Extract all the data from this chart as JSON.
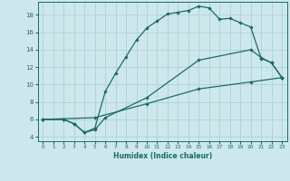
{
  "xlabel": "Humidex (Indice chaleur)",
  "background_color": "#cde8ec",
  "grid_color": "#aed0d5",
  "line_color": "#1a6b6b",
  "xlim": [
    -0.5,
    23.5
  ],
  "ylim": [
    3.5,
    19.5
  ],
  "xticks": [
    0,
    1,
    2,
    3,
    4,
    5,
    6,
    7,
    8,
    9,
    10,
    11,
    12,
    13,
    14,
    15,
    16,
    17,
    18,
    19,
    20,
    21,
    22,
    23
  ],
  "yticks": [
    4,
    6,
    8,
    10,
    12,
    14,
    16,
    18
  ],
  "curve1_x": [
    0,
    2,
    3,
    4,
    5,
    6,
    7,
    8,
    9,
    10,
    11,
    12,
    13,
    14,
    15,
    16,
    17,
    18,
    19,
    20,
    21,
    22,
    23
  ],
  "curve1_y": [
    6,
    6,
    5.5,
    4.5,
    5,
    9.2,
    11.3,
    13.2,
    15.1,
    16.5,
    17.3,
    18.1,
    18.3,
    18.5,
    19.0,
    18.8,
    17.5,
    17.6,
    17.1,
    16.6,
    13.0,
    12.5,
    10.8
  ],
  "curve2_x": [
    0,
    2,
    3,
    4,
    5,
    6,
    10,
    15,
    20,
    21,
    22,
    23
  ],
  "curve2_y": [
    6,
    6,
    5.5,
    4.5,
    4.8,
    6.2,
    8.5,
    12.8,
    14.0,
    13.1,
    12.5,
    10.8
  ],
  "curve3_x": [
    0,
    5,
    10,
    15,
    20,
    23
  ],
  "curve3_y": [
    6,
    6.2,
    7.8,
    9.5,
    10.3,
    10.8
  ]
}
